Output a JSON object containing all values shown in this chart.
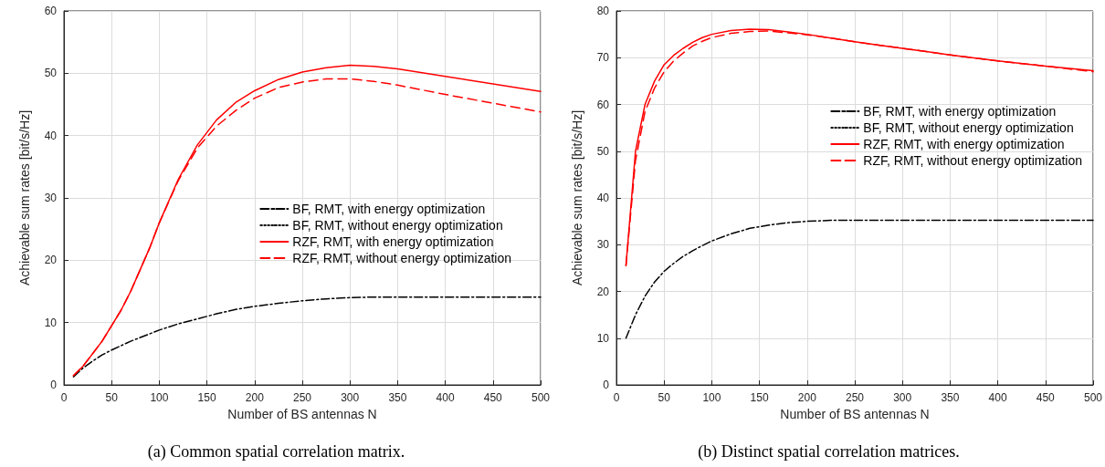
{
  "chart_data": [
    {
      "type": "line",
      "xlabel": "Number of BS antennas N",
      "ylabel": "Achievable sum rates [bit/s/Hz]",
      "annotations": [
        "(a) Common spatial correlation matrix."
      ],
      "x": [
        10,
        20,
        30,
        40,
        50,
        60,
        70,
        80,
        90,
        100,
        120,
        140,
        160,
        180,
        200,
        225,
        250,
        275,
        300,
        325,
        350,
        400,
        450,
        500
      ],
      "xlim": [
        0,
        500
      ],
      "xticks": [
        0,
        50,
        100,
        150,
        200,
        250,
        300,
        350,
        400,
        450,
        500
      ],
      "ylim": [
        0,
        60
      ],
      "yticks": [
        0,
        10,
        20,
        30,
        40,
        50,
        60
      ],
      "grid": true,
      "legend": "center right",
      "series": [
        {
          "name": "BF, RMT, with energy optimization",
          "color": "#000000",
          "line_style": "dashdot",
          "values": [
            1.3,
            2.7,
            3.8,
            4.8,
            5.6,
            6.3,
            7,
            7.6,
            8.2,
            8.8,
            9.8,
            10.6,
            11.4,
            12.1,
            12.6,
            13.1,
            13.5,
            13.8,
            14,
            14.1,
            14.1,
            14.1,
            14.1,
            14.1
          ]
        },
        {
          "name": "BF, RMT, without energy optimization",
          "color": "#000000",
          "line_style": "dotted",
          "values": [
            null,
            null,
            null,
            null,
            null,
            null,
            null,
            null,
            null,
            null,
            null,
            null,
            null,
            null,
            null,
            null,
            null,
            null,
            null,
            null,
            null,
            null,
            null,
            null
          ]
        },
        {
          "name": "RZF, RMT, with energy optimization",
          "color": "#ff0000",
          "line_style": "solid",
          "values": [
            1.5,
            3,
            5,
            7,
            9.5,
            12,
            15,
            18.5,
            22,
            26,
            33,
            38.5,
            42.5,
            45.3,
            47.2,
            49,
            50.2,
            50.9,
            51.3,
            51.1,
            50.7,
            49.5,
            48.3,
            47.1
          ]
        },
        {
          "name": "RZF, RMT, without energy optimization",
          "color": "#ff0000",
          "line_style": "dashed",
          "values": [
            1.5,
            3,
            5,
            7,
            9.5,
            12,
            15,
            18.5,
            22,
            26,
            32.8,
            38,
            41.5,
            44,
            46,
            47.7,
            48.6,
            49.1,
            49.1,
            48.7,
            48.1,
            46.6,
            45.2,
            43.8
          ]
        }
      ]
    },
    {
      "type": "line",
      "xlabel": "Number of BS antennas N",
      "ylabel": "Achievable sum rates [bit/s/Hz]",
      "annotations": [
        "(b) Distinct spatial correlation matrices."
      ],
      "x": [
        10,
        20,
        30,
        40,
        50,
        60,
        70,
        80,
        90,
        100,
        120,
        140,
        160,
        180,
        200,
        225,
        250,
        275,
        300,
        325,
        350,
        400,
        450,
        500
      ],
      "xlim": [
        0,
        500
      ],
      "xticks": [
        0,
        50,
        100,
        150,
        200,
        250,
        300,
        350,
        400,
        450,
        500
      ],
      "ylim": [
        0,
        80
      ],
      "yticks": [
        0,
        10,
        20,
        30,
        40,
        50,
        60,
        70,
        80
      ],
      "grid": true,
      "legend": "top right",
      "series": [
        {
          "name": "BF, RMT, with energy optimization",
          "color": "#000000",
          "line_style": "dashdot",
          "values": [
            10,
            15,
            19,
            22,
            24.3,
            26,
            27.5,
            28.7,
            29.8,
            30.8,
            32.3,
            33.5,
            34.2,
            34.7,
            35,
            35.2,
            35.2,
            35.2,
            35.2,
            35.2,
            35.2,
            35.2,
            35.2,
            35.2
          ]
        },
        {
          "name": "BF, RMT, without energy optimization",
          "color": "#000000",
          "line_style": "dotted",
          "values": [
            null,
            null,
            null,
            null,
            null,
            null,
            null,
            null,
            null,
            null,
            null,
            null,
            null,
            null,
            null,
            null,
            null,
            null,
            null,
            null,
            null,
            null,
            null,
            null
          ]
        },
        {
          "name": "RZF, RMT, with energy optimization",
          "color": "#ff0000",
          "line_style": "solid",
          "values": [
            25.5,
            50,
            60,
            65,
            68.5,
            70.5,
            72,
            73.3,
            74.3,
            75,
            75.8,
            76.1,
            76,
            75.5,
            75,
            74.2,
            73.4,
            72.7,
            72,
            71.3,
            70.6,
            69.3,
            68.2,
            67.2
          ]
        },
        {
          "name": "RZF, RMT, without energy optimization",
          "color": "#ff0000",
          "line_style": "dashed",
          "values": [
            25.5,
            48,
            58.5,
            63.5,
            67,
            69.3,
            71,
            72.5,
            73.5,
            74.3,
            75.2,
            75.6,
            75.7,
            75.3,
            74.9,
            74.2,
            73.4,
            72.7,
            72,
            71.3,
            70.6,
            69.3,
            68.2,
            67
          ]
        }
      ]
    }
  ]
}
